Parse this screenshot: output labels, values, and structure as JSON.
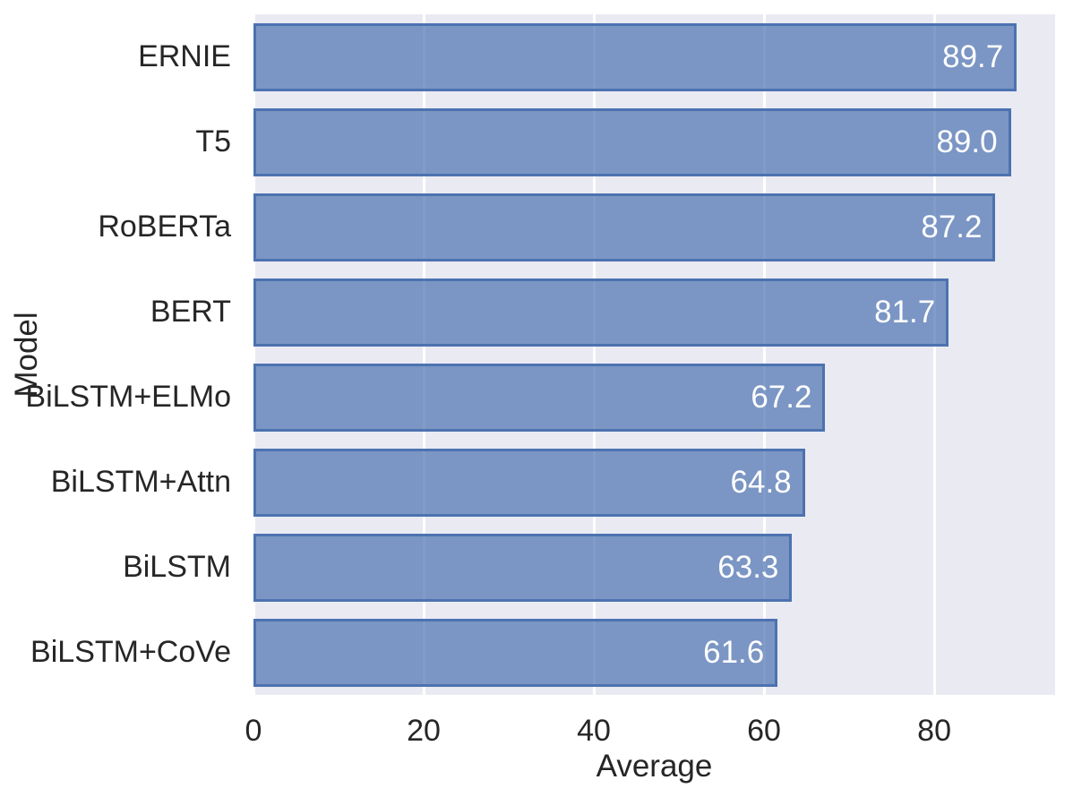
{
  "chart_data": {
    "type": "bar",
    "orientation": "horizontal",
    "title": "",
    "xlabel": "Average",
    "ylabel": "Model",
    "categories": [
      "ERNIE",
      "T5",
      "RoBERTa",
      "BERT",
      "BiLSTM+ELMo",
      "BiLSTM+Attn",
      "BiLSTM",
      "BiLSTM+CoVe"
    ],
    "values": [
      89.7,
      89.0,
      87.2,
      81.7,
      67.2,
      64.8,
      63.3,
      61.6
    ],
    "value_labels": [
      "89.7",
      "89.0",
      "87.2",
      "81.7",
      "67.2",
      "64.8",
      "63.3",
      "61.6"
    ],
    "xticks": [
      0,
      20,
      40,
      60,
      80
    ],
    "xtick_labels": [
      "0",
      "20",
      "40",
      "60",
      "80"
    ],
    "xlim": [
      0,
      94.2
    ],
    "grid": true,
    "legend": false,
    "colors": {
      "bar_fill": "rgba(76,114,176,0.7)",
      "bar_edge": "#4c72b0",
      "plot_background": "#eaeaf2",
      "figure_background": "#ffffff",
      "gridline": "#ffffff",
      "tick_text": "#262626",
      "value_text": "#ffffff"
    }
  }
}
